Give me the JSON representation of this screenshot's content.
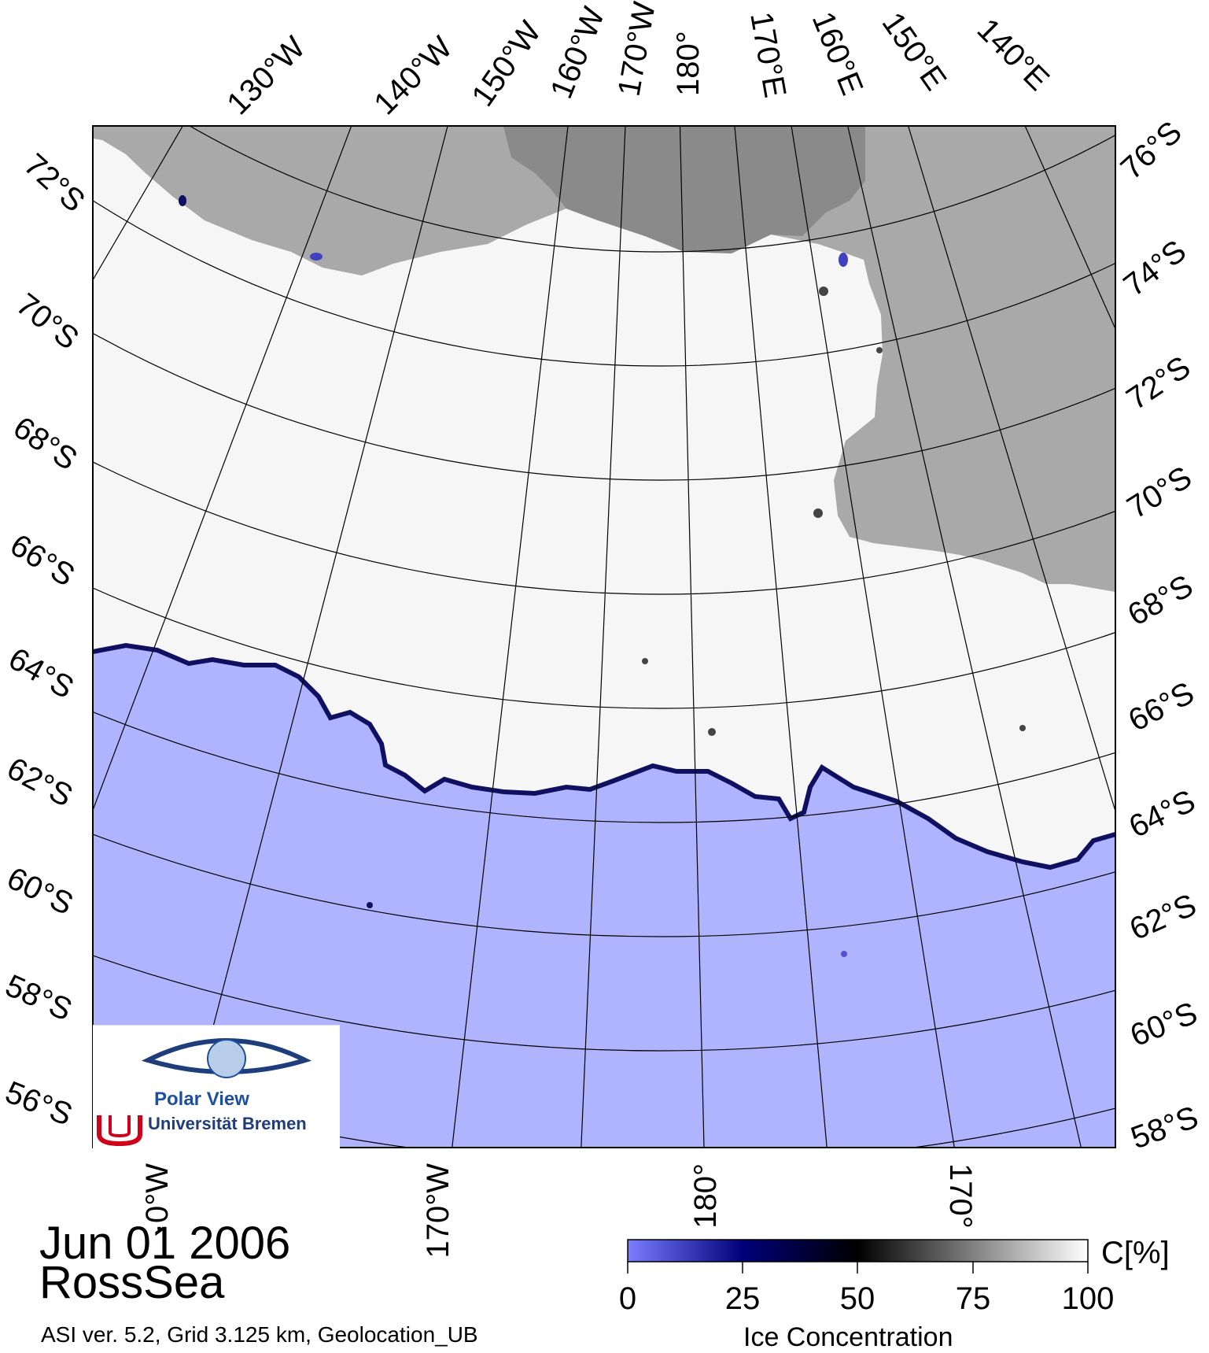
{
  "map": {
    "date": "Jun 01 2006",
    "region": "RossSea",
    "info": "ASI ver. 5.2,  Grid 3.125 km, Geolocation_UB",
    "longitude_labels_top": [
      "130°W",
      "140°W",
      "150°W",
      "160°W",
      "170°W",
      "180°",
      "170°E",
      "160°E",
      "150°E",
      "140°E"
    ],
    "latitude_labels_left": [
      "72°S",
      "70°S",
      "68°S",
      "66°S",
      "64°S",
      "62°S",
      "60°S",
      "58°S",
      "56°S"
    ],
    "latitude_labels_right": [
      "76°S",
      "74°S",
      "72°S",
      "70°S",
      "68°S",
      "66°S",
      "64°S",
      "62°S",
      "60°S",
      "58°S"
    ],
    "longitude_labels_bottom": [
      "170°W",
      "180°",
      "170°"
    ],
    "bottom_partial_label": "·0°W",
    "colors": {
      "ocean": "#b0b4fe",
      "ice": "#f6f6f6",
      "land": "#a9a9a9",
      "land_dark": "#8a8a8a",
      "grid": "#000000"
    }
  },
  "colorbar": {
    "title": "Ice Concentration",
    "unit": "C[%]",
    "ticks": [
      "0",
      "25",
      "50",
      "75",
      "100"
    ],
    "stops": [
      "#7b7dff",
      "#00007a",
      "#000000",
      "#808080",
      "#ffffff"
    ]
  },
  "logo": {
    "name": "Polar View",
    "institution": "Universität Bremen"
  }
}
